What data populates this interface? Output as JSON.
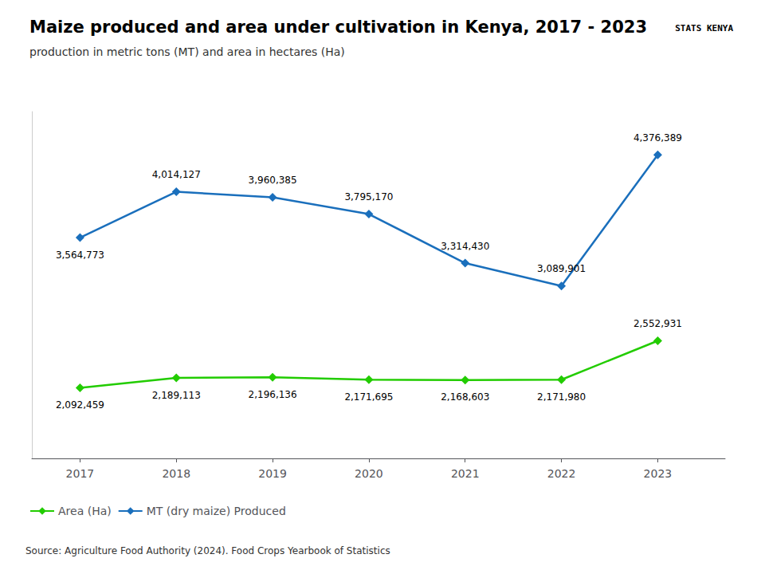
{
  "chart_data": {
    "type": "line",
    "title": "Maize produced and area under cultivation in Kenya, 2017 - 2023",
    "subtitle": "production in metric tons (MT) and area in hectares (Ha)",
    "source": "Source: Agriculture Food Authority (2024). Food Crops Yearbook of Statistics",
    "annotations": [
      "STATS KENYA"
    ],
    "x": [
      2017,
      2018,
      2019,
      2020,
      2021,
      2022,
      2023
    ],
    "series": [
      {
        "name": "MT (dry maize) Produced",
        "color": "#1a6fbc",
        "marker": "diamond",
        "line_style": "solid",
        "values": [
          3564773,
          4014127,
          3960385,
          3795170,
          3314430,
          3089901,
          4376389
        ],
        "value_labels": [
          "3,564,773",
          "4,014,127",
          "3,960,385",
          "3,795,170",
          "3,314,430",
          "3,089,901",
          "4,376,389"
        ]
      },
      {
        "name": "Area (Ha)",
        "color": "#22cc00",
        "marker": "diamond",
        "line_style": "solid",
        "values": [
          2092459,
          2189113,
          2196136,
          2171695,
          2168603,
          2171980,
          2552931
        ],
        "value_labels": [
          "2,092,459",
          "2,189,113",
          "2,196,136",
          "2,171,695",
          "2,168,603",
          "2,171,980",
          "2,552,931"
        ]
      }
    ],
    "xlim": [
      2016.5,
      2023.7
    ],
    "xticks": [
      2017,
      2018,
      2019,
      2020,
      2021,
      2022,
      2023
    ],
    "ylim": [
      1400000,
      4800000
    ],
    "tick_labels": "x",
    "grid": false,
    "legend": "lower left",
    "data_labels": true
  }
}
